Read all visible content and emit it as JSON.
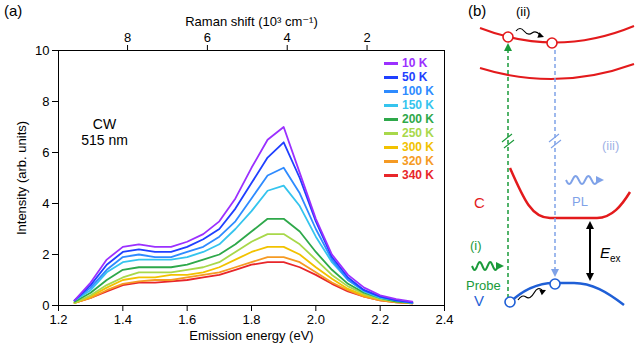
{
  "chart_data": {
    "type": "line",
    "panel": "(a)",
    "xlabel": "Emission energy (eV)",
    "ylabel": "Intensity (arb. units)",
    "x2label": "Raman shift (10³ cm⁻¹)",
    "annotation": "CW\n515 nm",
    "xlim": [
      1.2,
      2.4
    ],
    "xticks": [
      1.2,
      1.4,
      1.6,
      1.8,
      {
        "value": 2,
        "label": "2.0"
      },
      2.2,
      2.4
    ],
    "ylim": [
      0,
      10
    ],
    "yticks": [
      0,
      2,
      4,
      6,
      8,
      10
    ],
    "x2lim": [
      9.73,
      0.06
    ],
    "x2ticks": [
      8,
      6,
      4,
      2
    ],
    "legend": "top-right",
    "x": [
      1.25,
      1.3,
      1.35,
      1.4,
      1.45,
      1.5,
      1.55,
      1.6,
      1.65,
      1.7,
      1.75,
      1.8,
      1.85,
      1.9,
      1.95,
      2.0,
      2.05,
      2.1,
      2.15,
      2.2,
      2.25,
      2.3
    ],
    "series": [
      {
        "name": "10 K",
        "color": "#9b30ff",
        "values": [
          0.2,
          0.9,
          1.8,
          2.3,
          2.4,
          2.3,
          2.3,
          2.5,
          2.8,
          3.3,
          4.2,
          5.4,
          6.5,
          7.0,
          5.2,
          3.4,
          2.0,
          1.2,
          0.7,
          0.4,
          0.25,
          0.15
        ]
      },
      {
        "name": "50 K",
        "color": "#1f3fff",
        "values": [
          0.2,
          0.8,
          1.6,
          2.1,
          2.2,
          2.1,
          2.1,
          2.3,
          2.6,
          3.0,
          3.8,
          4.8,
          5.8,
          6.4,
          5.0,
          3.3,
          1.9,
          1.1,
          0.6,
          0.35,
          0.2,
          0.12
        ]
      },
      {
        "name": "100 K",
        "color": "#2e8bff",
        "values": [
          0.2,
          0.7,
          1.4,
          1.9,
          2.0,
          1.9,
          1.9,
          2.1,
          2.3,
          2.7,
          3.3,
          4.2,
          5.1,
          5.4,
          4.4,
          3.0,
          1.8,
          1.0,
          0.6,
          0.35,
          0.2,
          0.1
        ]
      },
      {
        "name": "150 K",
        "color": "#35c4ee",
        "values": [
          0.2,
          0.6,
          1.3,
          1.7,
          1.8,
          1.8,
          1.8,
          1.9,
          2.1,
          2.4,
          3.0,
          3.7,
          4.5,
          4.7,
          3.9,
          2.7,
          1.7,
          1.0,
          0.55,
          0.3,
          0.2,
          0.1
        ]
      },
      {
        "name": "200 K",
        "color": "#2ea84a",
        "values": [
          0.15,
          0.5,
          1.0,
          1.4,
          1.5,
          1.5,
          1.5,
          1.6,
          1.8,
          2.0,
          2.4,
          2.9,
          3.4,
          3.4,
          2.9,
          2.1,
          1.4,
          0.85,
          0.5,
          0.3,
          0.15,
          0.1
        ]
      },
      {
        "name": "250 K",
        "color": "#a8d84a",
        "values": [
          0.1,
          0.4,
          0.8,
          1.1,
          1.3,
          1.3,
          1.3,
          1.4,
          1.5,
          1.7,
          2.1,
          2.5,
          2.8,
          2.8,
          2.4,
          1.8,
          1.2,
          0.75,
          0.45,
          0.25,
          0.15,
          0.1
        ]
      },
      {
        "name": "300 K",
        "color": "#f2c200",
        "values": [
          0.1,
          0.35,
          0.7,
          1.0,
          1.1,
          1.1,
          1.2,
          1.2,
          1.3,
          1.5,
          1.8,
          2.1,
          2.3,
          2.3,
          2.0,
          1.5,
          1.05,
          0.65,
          0.4,
          0.25,
          0.15,
          0.08
        ]
      },
      {
        "name": "320 K",
        "color": "#f59a23",
        "values": [
          0.1,
          0.3,
          0.6,
          0.85,
          0.95,
          1.0,
          1.0,
          1.1,
          1.2,
          1.3,
          1.5,
          1.7,
          1.9,
          1.9,
          1.7,
          1.3,
          0.9,
          0.6,
          0.35,
          0.2,
          0.12,
          0.08
        ]
      },
      {
        "name": "340 K",
        "color": "#e8262a",
        "values": [
          0.1,
          0.3,
          0.55,
          0.8,
          0.9,
          0.9,
          0.95,
          1.0,
          1.1,
          1.2,
          1.4,
          1.6,
          1.7,
          1.7,
          1.5,
          1.2,
          0.85,
          0.55,
          0.35,
          0.2,
          0.12,
          0.08
        ]
      }
    ]
  },
  "diagram": {
    "panel": "(b)",
    "step_labels": [
      "(i)",
      "(ii)",
      "(iii)"
    ],
    "probe": "Probe",
    "pl": "PL",
    "conduction": "C",
    "valence": "V",
    "energy": {
      "text": "E",
      "subscript": "ex"
    }
  }
}
